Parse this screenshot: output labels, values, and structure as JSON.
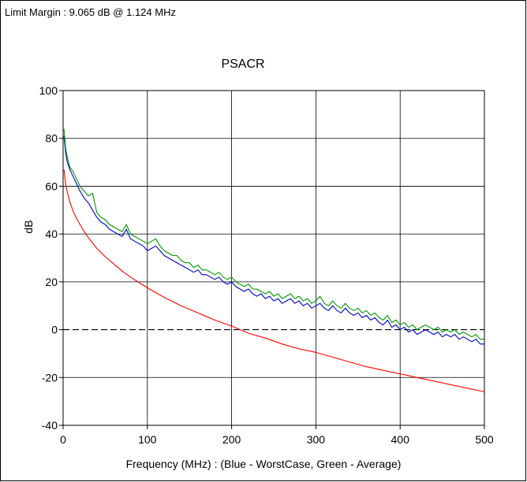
{
  "header": {
    "limit_margin": "Limit Margin : 9.065 dB @ 1.124 MHz"
  },
  "chart_data": {
    "type": "line",
    "title": "PSACR",
    "xlabel": "Frequency (MHz) : (Blue - WorstCase, Green - Average)",
    "ylabel": "dB",
    "xlim": [
      0,
      500
    ],
    "ylim": [
      -40,
      100
    ],
    "x_ticks": [
      0,
      100,
      200,
      300,
      400,
      500
    ],
    "y_ticks": [
      -40,
      -20,
      0,
      20,
      40,
      60,
      80,
      100
    ],
    "grid": true,
    "reference_line": {
      "y": 0,
      "style": "dashed",
      "color": "#000000"
    },
    "series": [
      {
        "color": "#0000cc",
        "x": [
          1,
          3,
          5,
          8,
          12,
          16,
          20,
          25,
          30,
          35,
          40,
          45,
          50,
          55,
          60,
          65,
          70,
          75,
          80,
          85,
          90,
          95,
          100,
          105,
          110,
          115,
          120,
          125,
          130,
          135,
          140,
          145,
          150,
          155,
          160,
          165,
          170,
          175,
          180,
          185,
          190,
          195,
          200,
          205,
          210,
          215,
          220,
          225,
          230,
          235,
          240,
          245,
          250,
          255,
          260,
          265,
          270,
          275,
          280,
          285,
          290,
          295,
          300,
          305,
          310,
          315,
          320,
          325,
          330,
          335,
          340,
          345,
          350,
          355,
          360,
          365,
          370,
          375,
          380,
          385,
          390,
          395,
          400,
          405,
          410,
          415,
          420,
          425,
          430,
          435,
          440,
          445,
          450,
          455,
          460,
          465,
          470,
          475,
          480,
          485,
          490,
          495,
          500
        ],
        "values": [
          81,
          74,
          70,
          67,
          64,
          61,
          58,
          55,
          53,
          50,
          47,
          45,
          44,
          42,
          41,
          40,
          39,
          42,
          38,
          37,
          36,
          35,
          33,
          34,
          35,
          33,
          31,
          30,
          29,
          28,
          27,
          26,
          25,
          24,
          25,
          23,
          23,
          22,
          21,
          22,
          20,
          19,
          20,
          18,
          17,
          16,
          17,
          15,
          14,
          15,
          13,
          14,
          12,
          13,
          11,
          12,
          13,
          11,
          12,
          10,
          11,
          9,
          10,
          11,
          9,
          8,
          10,
          8,
          7,
          9,
          7,
          6,
          7,
          5,
          6,
          4,
          5,
          3,
          2,
          4,
          1,
          2,
          0,
          1,
          -1,
          0,
          -2,
          -1,
          0,
          -1,
          -2,
          -1,
          -3,
          -2,
          -3,
          -2,
          -4,
          -3,
          -4,
          -5,
          -4,
          -6,
          -6
        ]
      },
      {
        "color": "#009900",
        "x": [
          1,
          3,
          5,
          8,
          12,
          16,
          20,
          25,
          30,
          35,
          40,
          45,
          50,
          55,
          60,
          65,
          70,
          75,
          80,
          85,
          90,
          95,
          100,
          105,
          110,
          115,
          120,
          125,
          130,
          135,
          140,
          145,
          150,
          155,
          160,
          165,
          170,
          175,
          180,
          185,
          190,
          195,
          200,
          205,
          210,
          215,
          220,
          225,
          230,
          235,
          240,
          245,
          250,
          255,
          260,
          265,
          270,
          275,
          280,
          285,
          290,
          295,
          300,
          305,
          310,
          315,
          320,
          325,
          330,
          335,
          340,
          345,
          350,
          355,
          360,
          365,
          370,
          375,
          380,
          385,
          390,
          395,
          400,
          405,
          410,
          415,
          420,
          425,
          430,
          435,
          440,
          445,
          450,
          455,
          460,
          465,
          470,
          475,
          480,
          485,
          490,
          495,
          500
        ],
        "values": [
          84,
          76,
          72,
          68,
          66,
          63,
          60,
          58,
          56,
          57,
          49,
          47,
          46,
          44,
          43,
          42,
          41,
          44,
          40,
          39,
          38,
          37,
          36,
          37,
          38,
          35,
          33,
          32,
          31,
          31,
          29,
          28,
          28,
          26,
          27,
          25,
          25,
          24,
          23,
          24,
          22,
          21,
          22,
          20,
          19,
          18,
          19,
          17,
          17,
          16,
          15,
          16,
          14,
          15,
          13,
          14,
          15,
          13,
          14,
          12,
          13,
          11,
          12,
          14,
          11,
          10,
          12,
          10,
          9,
          11,
          9,
          8,
          9,
          7,
          8,
          6,
          7,
          5,
          4,
          6,
          3,
          4,
          2,
          3,
          1,
          2,
          0,
          1,
          2,
          1,
          0,
          1,
          -1,
          0,
          -1,
          0,
          -2,
          -1,
          -2,
          -3,
          -2,
          -4,
          -4
        ]
      },
      {
        "color": "#ff0000",
        "x": [
          1,
          3,
          5,
          8,
          12,
          16,
          20,
          25,
          30,
          40,
          50,
          60,
          70,
          80,
          100,
          120,
          140,
          160,
          180,
          200,
          220,
          240,
          260,
          280,
          300,
          320,
          340,
          360,
          380,
          400,
          420,
          440,
          460,
          480,
          500
        ],
        "values": [
          67,
          61,
          57.5,
          53.5,
          49.5,
          46.5,
          44,
          41,
          38.5,
          34,
          30.5,
          27.5,
          24.5,
          22,
          17.5,
          13.5,
          10,
          7,
          4,
          1.5,
          -1.5,
          -3.5,
          -6,
          -8,
          -9.5,
          -11.5,
          -13.5,
          -15.5,
          -17,
          -18.5,
          -20,
          -21.5,
          -23,
          -24.5,
          -26
        ]
      }
    ]
  }
}
